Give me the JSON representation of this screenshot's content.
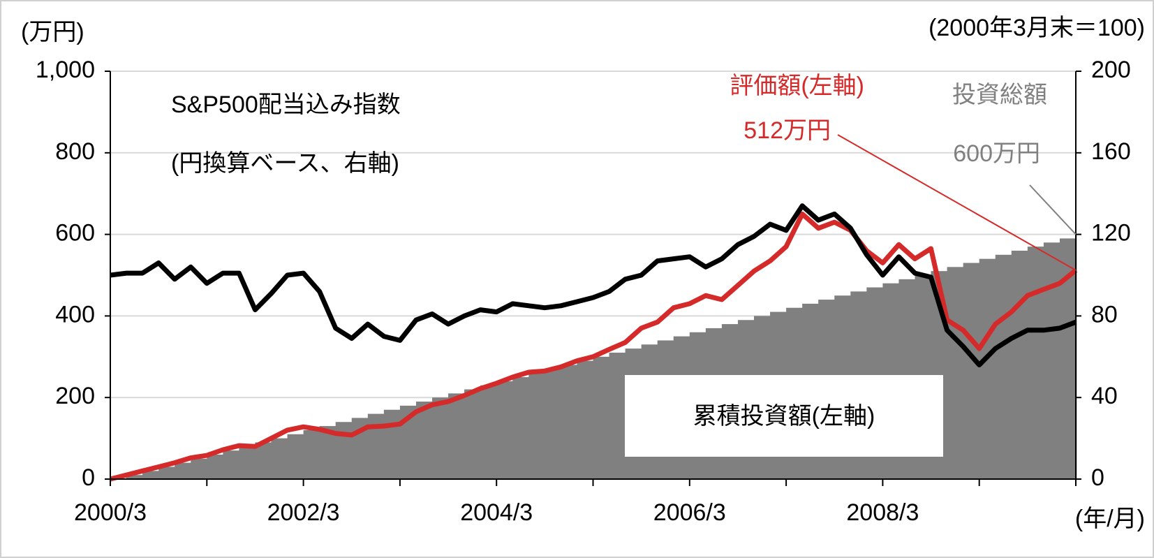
{
  "chart_data": {
    "type": "combo",
    "ylabel": "(万円)",
    "y2label": "(2000年3月末＝100)",
    "xlabel": "(年/月)",
    "x": [
      "2000/3",
      "2000/5",
      "2000/7",
      "2000/9",
      "2000/11",
      "2001/1",
      "2001/3",
      "2001/5",
      "2001/7",
      "2001/9",
      "2001/11",
      "2002/1",
      "2002/3",
      "2002/5",
      "2002/7",
      "2002/9",
      "2002/11",
      "2003/1",
      "2003/3",
      "2003/5",
      "2003/7",
      "2003/9",
      "2003/11",
      "2004/1",
      "2004/3",
      "2004/5",
      "2004/7",
      "2004/9",
      "2004/11",
      "2005/1",
      "2005/3",
      "2005/5",
      "2005/7",
      "2005/9",
      "2005/11",
      "2006/1",
      "2006/3",
      "2006/5",
      "2006/7",
      "2006/9",
      "2006/11",
      "2007/1",
      "2007/3",
      "2007/5",
      "2007/7",
      "2007/9",
      "2007/11",
      "2008/1",
      "2008/3",
      "2008/5",
      "2008/7",
      "2008/9",
      "2008/11",
      "2009/1",
      "2009/3",
      "2009/5",
      "2009/7",
      "2009/9",
      "2009/11",
      "2010/1",
      "2010/3"
    ],
    "xtick_index": [
      0,
      12,
      24,
      36,
      48
    ],
    "series": [
      {
        "name": "累積投資額(左軸)",
        "kind": "area",
        "color": "#808080",
        "axis": "y",
        "values": [
          0,
          10,
          20,
          30,
          40,
          50,
          60,
          70,
          80,
          90,
          100,
          110,
          120,
          130,
          140,
          150,
          160,
          170,
          180,
          190,
          200,
          210,
          220,
          230,
          240,
          250,
          260,
          270,
          280,
          290,
          300,
          310,
          320,
          330,
          340,
          350,
          360,
          370,
          380,
          390,
          400,
          410,
          420,
          430,
          440,
          450,
          460,
          470,
          480,
          490,
          500,
          510,
          520,
          530,
          540,
          550,
          560,
          570,
          580,
          590,
          600
        ]
      },
      {
        "name": "評価額(左軸)",
        "kind": "line",
        "color": "#d42a2a",
        "axis": "y",
        "values": [
          0,
          10,
          20,
          30,
          40,
          52,
          58,
          72,
          82,
          80,
          100,
          120,
          128,
          122,
          112,
          108,
          128,
          130,
          135,
          165,
          182,
          190,
          205,
          222,
          235,
          250,
          262,
          265,
          275,
          290,
          300,
          318,
          335,
          370,
          385,
          420,
          430,
          450,
          440,
          475,
          510,
          535,
          570,
          650,
          615,
          630,
          610,
          560,
          530,
          575,
          540,
          565,
          390,
          365,
          320,
          380,
          410,
          450,
          465,
          480,
          512
        ]
      },
      {
        "name": "S&P500配当込み指数",
        "kind": "line",
        "color": "#000000",
        "axis": "y2",
        "values": [
          100,
          101,
          101,
          106,
          98,
          104,
          96,
          101,
          101,
          83,
          91,
          100,
          101,
          92,
          74,
          69,
          76,
          70,
          68,
          78,
          81,
          76,
          80,
          83,
          82,
          86,
          85,
          84,
          85,
          87,
          89,
          92,
          98,
          100,
          107,
          108,
          109,
          104,
          108,
          115,
          119,
          125,
          122,
          134,
          127,
          130,
          123,
          110,
          100,
          109,
          101,
          99,
          73,
          65,
          56,
          64,
          69,
          73,
          73,
          74,
          77
        ]
      }
    ],
    "annotations": {
      "index_note": "(円換算ベース、右軸)",
      "final_value": "512万円",
      "total_label": "投資総額",
      "total_value": "600万円"
    },
    "ylim": [
      0,
      1000
    ],
    "yticks": [
      0,
      200,
      400,
      600,
      800,
      {
        "value": 1000,
        "label": "1,000"
      }
    ],
    "y2lim": [
      0,
      200
    ],
    "y2ticks": [
      0,
      40,
      80,
      120,
      160,
      200
    ],
    "grid": true
  }
}
